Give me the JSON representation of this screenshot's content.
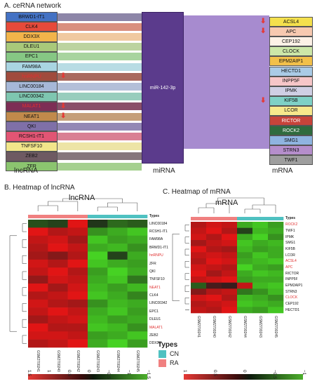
{
  "section_a": {
    "title": "A. ceRNA network",
    "lncRNAs": [
      {
        "name": "BRWD1-IT1",
        "color": "#4472c4",
        "band": "#8d86a8",
        "red": false,
        "arrow": false
      },
      {
        "name": "CLK4",
        "color": "#e64a3a",
        "band": "#d98f7e",
        "red": false,
        "arrow": false
      },
      {
        "name": "DDX3X",
        "color": "#f2b44a",
        "band": "#f0c9a0",
        "red": false,
        "arrow": false
      },
      {
        "name": "DLEU1",
        "color": "#a9c97a",
        "band": "#bcd3a0",
        "red": false,
        "arrow": false
      },
      {
        "name": "EPC1",
        "color": "#86c784",
        "band": "#a8d49f",
        "red": false,
        "arrow": false
      },
      {
        "name": "FAM98A",
        "color": "#a9d5e2",
        "band": "#b8dce4",
        "red": false,
        "arrow": false
      },
      {
        "name": "hnRNPU",
        "color": "#a04b3d",
        "band": "#a9695e",
        "red": true,
        "arrow": true
      },
      {
        "name": "LINC00184",
        "color": "#a6b8d8",
        "band": "#b3bfd8",
        "red": false,
        "arrow": false
      },
      {
        "name": "LINC00342",
        "color": "#7ec6b0",
        "band": "#98cdbd",
        "red": false,
        "arrow": false
      },
      {
        "name": "MALAT1",
        "color": "#7d2e55",
        "band": "#8a4f6a",
        "red": true,
        "arrow": true
      },
      {
        "name": "NEAT1",
        "color": "#c18a4b",
        "band": "#c59f7a",
        "red": false,
        "arrow": true
      },
      {
        "name": "QKI",
        "color": "#7f70a8",
        "band": "#9388b5",
        "red": false,
        "arrow": false
      },
      {
        "name": "RCSH1-IT1",
        "color": "#e25574",
        "band": "#d97f93",
        "red": false,
        "arrow": false
      },
      {
        "name": "TNFSF10",
        "color": "#f2e68a",
        "band": "#ede4a6",
        "red": false,
        "arrow": false
      },
      {
        "name": "ZEB2",
        "color": "#6e5a62",
        "band": "#86767c",
        "red": false,
        "arrow": false
      },
      {
        "name": "ZFR",
        "color": "#8bc56f",
        "band": "#a5d08f",
        "red": false,
        "arrow": false
      }
    ],
    "mirna_label": "miR-142-3p",
    "mRNAs": [
      {
        "name": "ACSL4",
        "color": "#f4e04d",
        "arrow": true
      },
      {
        "name": "APC",
        "color": "#f7c9b0",
        "arrow": true
      },
      {
        "name": "CEP192",
        "color": "#fdf1e6",
        "arrow": false
      },
      {
        "name": "CLOCK",
        "color": "#cde7a8",
        "arrow": false
      },
      {
        "name": "EPM2AIP1",
        "color": "#f2c04a",
        "arrow": false
      },
      {
        "name": "HECTD1",
        "color": "#aacbe6",
        "arrow": false
      },
      {
        "name": "INPP5F",
        "color": "#f6c6c8",
        "arrow": false
      },
      {
        "name": "IPMK",
        "color": "#cfcfe4",
        "arrow": false
      },
      {
        "name": "KIF5B",
        "color": "#7fd1c6",
        "arrow": true
      },
      {
        "name": "LCOR",
        "color": "#f7e88c",
        "arrow": false
      },
      {
        "name": "RICTOR",
        "color": "#c8433a",
        "arrow": false
      },
      {
        "name": "ROCK2",
        "color": "#2f6b3e",
        "arrow": false
      },
      {
        "name": "SMG1",
        "color": "#8fb4e0",
        "arrow": false
      },
      {
        "name": "STRN3",
        "color": "#b58ecb",
        "arrow": false
      },
      {
        "name": "TWF1",
        "color": "#9e9e9e",
        "arrow": false
      }
    ],
    "bottom_labels": {
      "lnc": "lncRNA",
      "mi": "miRNA",
      "m": "mRNA"
    }
  },
  "section_b": {
    "title": "B. Heatmap of lncRNA",
    "inner_title": "lncRNA",
    "types_label": "Types",
    "columns": [
      "GSM2700241",
      "GSM2700240",
      "GSM2700242",
      "GSM2700243",
      "GSM2700244",
      "GSM2700245"
    ],
    "rows": [
      "LINC00184",
      "RCSH1-IT1",
      "FAM98A",
      "BRWD1-IT1",
      "hnRNPU",
      "ZFR",
      "QKI",
      "TNFSF10",
      "NEAT1",
      "CLK4",
      "LINC00342",
      "EPC1",
      "DLEU1",
      "MALAT1",
      "ZEB2",
      "DDX3X"
    ],
    "red_rows": [
      "hnRNPU",
      "NEAT1",
      "MALAT1"
    ],
    "values": [
      [
        -0.3,
        -0.2,
        1.2,
        -0.1,
        -0.5,
        -0.4
      ],
      [
        1.2,
        0.9,
        1.0,
        -0.8,
        -1.0,
        -1.2
      ],
      [
        1.0,
        1.1,
        0.8,
        -1.2,
        -0.9,
        -1.0
      ],
      [
        0.9,
        1.2,
        1.0,
        -1.0,
        -1.1,
        -0.8
      ],
      [
        0.8,
        0.6,
        0.9,
        -1.3,
        -0.2,
        -1.0
      ],
      [
        1.1,
        0.9,
        1.2,
        -1.2,
        -1.0,
        -0.9
      ],
      [
        1.0,
        1.2,
        0.9,
        -0.9,
        -1.3,
        -1.0
      ],
      [
        0.7,
        1.1,
        1.0,
        -1.0,
        -1.2,
        -0.6
      ],
      [
        1.2,
        0.8,
        1.1,
        -1.1,
        -0.9,
        -1.1
      ],
      [
        0.9,
        1.0,
        1.2,
        -1.2,
        -1.0,
        -0.7
      ],
      [
        1.1,
        0.9,
        0.8,
        -0.8,
        -1.1,
        -1.0
      ],
      [
        1.0,
        1.2,
        1.0,
        -1.0,
        -1.2,
        -0.9
      ],
      [
        0.8,
        1.0,
        1.1,
        -1.1,
        -0.9,
        -1.0
      ],
      [
        1.2,
        0.9,
        0.9,
        -1.2,
        -1.1,
        -0.8
      ],
      [
        1.1,
        1.1,
        1.0,
        -0.9,
        -1.0,
        -1.2
      ],
      [
        0.9,
        1.0,
        1.2,
        -1.0,
        -1.3,
        -0.9
      ]
    ],
    "legend_ticks": [
      "1.5",
      "1",
      "0.5",
      "0",
      "−0.5",
      "−1",
      "−1.5"
    ]
  },
  "section_c": {
    "title": "C. Heatmap of mRNA",
    "inner_title": "mRNA",
    "types_label": "Types",
    "columns": [
      "GSM2700241",
      "GSM2700240",
      "GSM2700242",
      "GSM2700244",
      "GSM2700243",
      "GSM2700245"
    ],
    "rows": [
      "ROCK2",
      "TWF1",
      "IPMK",
      "SMG1",
      "KIF5B",
      "LCOR",
      "ACSL4",
      "APC",
      "RICTOR",
      "INPP5F",
      "EPM2AIP1",
      "STRN3",
      "CLOCK",
      "CEP192",
      "HECTD1"
    ],
    "red_rows": [
      "ROCK2",
      "ACSL4",
      "APC",
      "CLOCK"
    ],
    "values": [
      [
        0.9,
        1.1,
        1.0,
        -1.0,
        -1.2,
        -0.9
      ],
      [
        1.0,
        1.2,
        0.9,
        -0.2,
        -1.1,
        -1.0
      ],
      [
        1.1,
        0.9,
        1.2,
        -1.0,
        -1.3,
        -0.8
      ],
      [
        0.8,
        1.0,
        1.1,
        -1.2,
        -1.0,
        -1.1
      ],
      [
        1.2,
        0.9,
        0.8,
        -1.1,
        -0.9,
        -1.0
      ],
      [
        1.0,
        1.1,
        1.0,
        -0.9,
        -1.2,
        -1.0
      ],
      [
        0.9,
        1.2,
        1.1,
        -1.0,
        -1.1,
        -1.2
      ],
      [
        1.1,
        1.0,
        0.9,
        -1.3,
        -1.0,
        -0.9
      ],
      [
        1.2,
        0.8,
        1.0,
        -1.0,
        -1.2,
        -1.1
      ],
      [
        1.0,
        1.1,
        1.2,
        -0.9,
        -1.0,
        -1.0
      ],
      [
        -0.4,
        0.2,
        0.1,
        1.0,
        -1.1,
        -1.2
      ],
      [
        0.6,
        0.9,
        1.0,
        -0.6,
        -0.8,
        -1.1
      ],
      [
        1.1,
        1.2,
        0.9,
        -1.1,
        -1.0,
        -0.8
      ],
      [
        0.9,
        1.0,
        1.1,
        -1.2,
        -1.1,
        -1.0
      ],
      [
        1.0,
        0.9,
        1.2,
        -1.0,
        -0.9,
        -1.2
      ]
    ],
    "legend_ticks": [
      "1",
      "0.5",
      "0",
      "−0.5",
      "−1"
    ]
  },
  "types_legend": {
    "title": "Types",
    "items": [
      {
        "label": "CN",
        "color": "#4fc1c1"
      },
      {
        "label": "RA",
        "color": "#f08080"
      }
    ]
  }
}
